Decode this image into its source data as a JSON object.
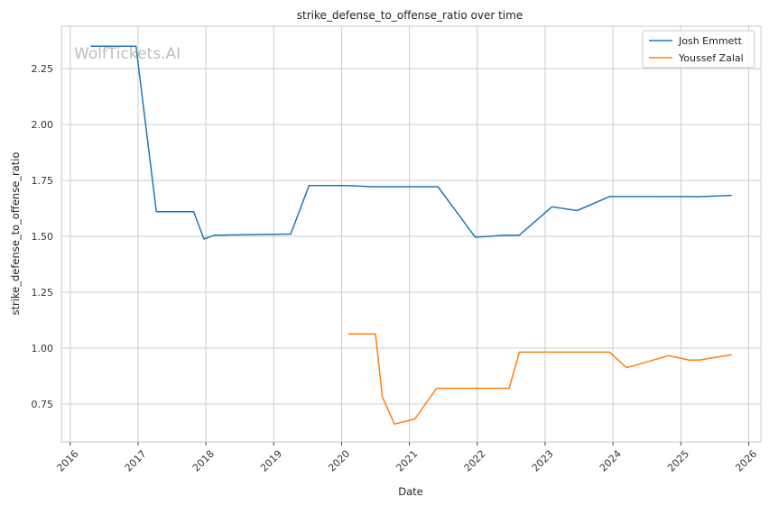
{
  "chart_data": {
    "type": "line",
    "title": "strike_defense_to_offense_ratio over time",
    "xlabel": "Date",
    "ylabel": "strike_defense_to_offense_ratio",
    "watermark": "WolfTickets.AI",
    "xlim": [
      2015.87,
      2026.18
    ],
    "ylim": [
      0.58,
      2.44
    ],
    "x_ticks": [
      2016,
      2017,
      2018,
      2019,
      2020,
      2021,
      2022,
      2023,
      2024,
      2025,
      2026
    ],
    "y_ticks": [
      0.75,
      1.0,
      1.25,
      1.5,
      1.75,
      2.0,
      2.25
    ],
    "y_tick_labels": [
      "0.75",
      "1.00",
      "1.25",
      "1.50",
      "1.75",
      "2.00",
      "2.25"
    ],
    "grid": true,
    "legend_position": "top-right",
    "series": [
      {
        "name": "Josh Emmett",
        "color": "#1f77b4",
        "points": [
          [
            2016.3,
            2.35
          ],
          [
            2016.97,
            2.35
          ],
          [
            2017.27,
            1.61
          ],
          [
            2017.82,
            1.61
          ],
          [
            2017.97,
            1.488
          ],
          [
            2018.13,
            1.505
          ],
          [
            2019.25,
            1.51
          ],
          [
            2019.52,
            1.727
          ],
          [
            2020.08,
            1.727
          ],
          [
            2020.45,
            1.722
          ],
          [
            2021.42,
            1.722
          ],
          [
            2021.97,
            1.496
          ],
          [
            2022.42,
            1.505
          ],
          [
            2022.62,
            1.505
          ],
          [
            2023.1,
            1.632
          ],
          [
            2023.47,
            1.615
          ],
          [
            2023.95,
            1.678
          ],
          [
            2024.55,
            1.678
          ],
          [
            2025.25,
            1.677
          ],
          [
            2025.75,
            1.683
          ]
        ]
      },
      {
        "name": "Youssef Zalal",
        "color": "#ff7f0e",
        "points": [
          [
            2020.1,
            1.063
          ],
          [
            2020.5,
            1.063
          ],
          [
            2020.6,
            0.782
          ],
          [
            2020.78,
            0.66
          ],
          [
            2021.08,
            0.683
          ],
          [
            2021.4,
            0.82
          ],
          [
            2021.88,
            0.82
          ],
          [
            2022.47,
            0.82
          ],
          [
            2022.62,
            0.982
          ],
          [
            2023.47,
            0.982
          ],
          [
            2023.95,
            0.982
          ],
          [
            2024.2,
            0.912
          ],
          [
            2024.82,
            0.966
          ],
          [
            2025.13,
            0.946
          ],
          [
            2025.27,
            0.946
          ],
          [
            2025.75,
            0.97
          ]
        ]
      }
    ]
  }
}
